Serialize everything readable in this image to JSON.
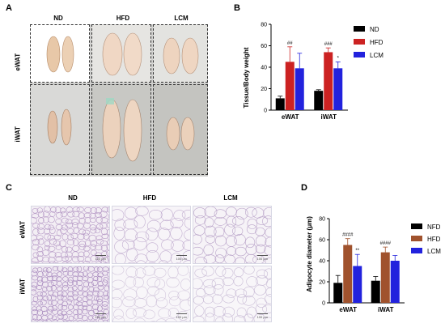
{
  "panel_labels": {
    "a": "A",
    "b": "B",
    "c": "C",
    "d": "D"
  },
  "panel_a": {
    "columns": [
      "ND",
      "HFD",
      "LCM"
    ],
    "rows": [
      "eWAT",
      "iWAT"
    ]
  },
  "panel_c": {
    "columns": [
      "ND",
      "HFD",
      "LCM"
    ],
    "rows": [
      "eWAT",
      "iWAT"
    ],
    "scale_label": "100 μm"
  },
  "chart_data": [
    {
      "id": "B",
      "type": "bar",
      "ylabel": "Tissue/Body weight",
      "ylim": [
        0,
        80
      ],
      "yticks": [
        0,
        20,
        40,
        60,
        80
      ],
      "categories": [
        "eWAT",
        "iWAT"
      ],
      "series": [
        {
          "name": "ND",
          "color": "#000000",
          "values": [
            11,
            18
          ],
          "errors": [
            2,
            1
          ]
        },
        {
          "name": "HFD",
          "color": "#cc2222",
          "values": [
            45,
            54
          ],
          "errors": [
            14,
            4
          ]
        },
        {
          "name": "LCM",
          "color": "#2222dd",
          "values": [
            39,
            39
          ],
          "errors": [
            14,
            6
          ]
        }
      ],
      "annotations": [
        {
          "category": 0,
          "series": 1,
          "text": "##"
        },
        {
          "category": 1,
          "series": 1,
          "text": "###"
        },
        {
          "category": 1,
          "series": 2,
          "text": "*"
        }
      ],
      "legend_position": "right"
    },
    {
      "id": "D",
      "type": "bar",
      "ylabel": "Adipocyte diameter (μm)",
      "ylim": [
        0,
        80
      ],
      "yticks": [
        0,
        20,
        40,
        60,
        80
      ],
      "categories": [
        "eWAT",
        "iWAT"
      ],
      "series": [
        {
          "name": "NFD",
          "color": "#000000",
          "values": [
            19,
            21
          ],
          "errors": [
            7,
            4
          ]
        },
        {
          "name": "HFD",
          "color": "#a0522d",
          "values": [
            55,
            48
          ],
          "errors": [
            6,
            5
          ]
        },
        {
          "name": "LCM",
          "color": "#2222dd",
          "values": [
            35,
            40
          ],
          "errors": [
            11,
            5
          ]
        }
      ],
      "annotations": [
        {
          "category": 0,
          "series": 1,
          "text": "####"
        },
        {
          "category": 0,
          "series": 2,
          "text": "**"
        },
        {
          "category": 1,
          "series": 1,
          "text": "####"
        }
      ],
      "legend_position": "right"
    }
  ]
}
